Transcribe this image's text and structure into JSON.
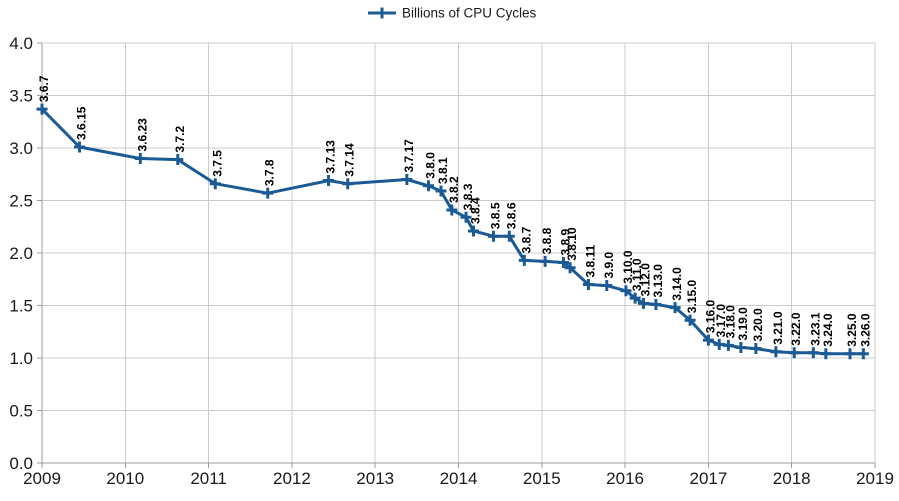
{
  "colors": {
    "series": "#1b5a94",
    "grid": "#cccccc",
    "axis": "#9b9b9b",
    "text": "#1a1a1a",
    "label": "#000000",
    "background": "#ffffff"
  },
  "chart_data": {
    "type": "line",
    "title": "",
    "legend_label": "Billions of CPU Cycles",
    "legend_position": "top-center",
    "grid": true,
    "marker": "plus",
    "xlabel": "",
    "ylabel": "",
    "x_axis": {
      "min": 2009,
      "max": 2019,
      "tick_interval": 1,
      "tick_labels": [
        "2009",
        "2010",
        "2011",
        "2012",
        "2013",
        "2014",
        "2015",
        "2016",
        "2017",
        "2018",
        "2019"
      ]
    },
    "y_axis": {
      "min": 0.0,
      "max": 4.0,
      "tick_interval": 0.5,
      "tick_labels": [
        "0.0",
        "0.5",
        "1.0",
        "1.5",
        "2.0",
        "2.5",
        "3.0",
        "3.5",
        "4.0"
      ]
    },
    "points": [
      {
        "label": "3.6.7",
        "x": 2009.0,
        "y": 3.37
      },
      {
        "label": "3.6.15",
        "x": 2009.45,
        "y": 3.01
      },
      {
        "label": "3.6.23",
        "x": 2010.18,
        "y": 2.9
      },
      {
        "label": "3.7.2",
        "x": 2010.63,
        "y": 2.89
      },
      {
        "label": "3.7.5",
        "x": 2011.08,
        "y": 2.66
      },
      {
        "label": "3.7.8",
        "x": 2011.71,
        "y": 2.57
      },
      {
        "label": "3.7.13",
        "x": 2012.44,
        "y": 2.69
      },
      {
        "label": "3.7.14",
        "x": 2012.67,
        "y": 2.66
      },
      {
        "label": "3.7.17",
        "x": 2013.38,
        "y": 2.7
      },
      {
        "label": "3.8.0",
        "x": 2013.64,
        "y": 2.64
      },
      {
        "label": "3.8.1",
        "x": 2013.79,
        "y": 2.59
      },
      {
        "label": "3.8.2",
        "x": 2013.92,
        "y": 2.41
      },
      {
        "label": "3.8.3",
        "x": 2014.09,
        "y": 2.34
      },
      {
        "label": "3.8.4",
        "x": 2014.18,
        "y": 2.21
      },
      {
        "label": "3.8.5",
        "x": 2014.42,
        "y": 2.16
      },
      {
        "label": "3.8.6",
        "x": 2014.61,
        "y": 2.16
      },
      {
        "label": "3.8.7",
        "x": 2014.79,
        "y": 1.93
      },
      {
        "label": "3.8.8",
        "x": 2015.04,
        "y": 1.92
      },
      {
        "label": "3.8.9",
        "x": 2015.26,
        "y": 1.91
      },
      {
        "label": "3.8.10",
        "x": 2015.34,
        "y": 1.86
      },
      {
        "label": "3.8.11",
        "x": 2015.56,
        "y": 1.7
      },
      {
        "label": "3.9.0",
        "x": 2015.78,
        "y": 1.69
      },
      {
        "label": "3.10.0",
        "x": 2016.01,
        "y": 1.64
      },
      {
        "label": "3.11.0",
        "x": 2016.12,
        "y": 1.57
      },
      {
        "label": "3.12.0",
        "x": 2016.22,
        "y": 1.52
      },
      {
        "label": "3.13.0",
        "x": 2016.37,
        "y": 1.51
      },
      {
        "label": "3.14.0",
        "x": 2016.6,
        "y": 1.48
      },
      {
        "label": "3.15.0",
        "x": 2016.78,
        "y": 1.36
      },
      {
        "label": "3.16.0",
        "x": 2017.0,
        "y": 1.17
      },
      {
        "label": "3.17.0",
        "x": 2017.13,
        "y": 1.13
      },
      {
        "label": "3.18.0",
        "x": 2017.24,
        "y": 1.12
      },
      {
        "label": "3.19.0",
        "x": 2017.39,
        "y": 1.1
      },
      {
        "label": "3.20.0",
        "x": 2017.57,
        "y": 1.09
      },
      {
        "label": "3.21.0",
        "x": 2017.81,
        "y": 1.06
      },
      {
        "label": "3.22.0",
        "x": 2018.03,
        "y": 1.05
      },
      {
        "label": "3.23.1",
        "x": 2018.26,
        "y": 1.05
      },
      {
        "label": "3.24.0",
        "x": 2018.41,
        "y": 1.04
      },
      {
        "label": "3.25.0",
        "x": 2018.7,
        "y": 1.04
      },
      {
        "label": "3.26.0",
        "x": 2018.86,
        "y": 1.04
      }
    ]
  }
}
